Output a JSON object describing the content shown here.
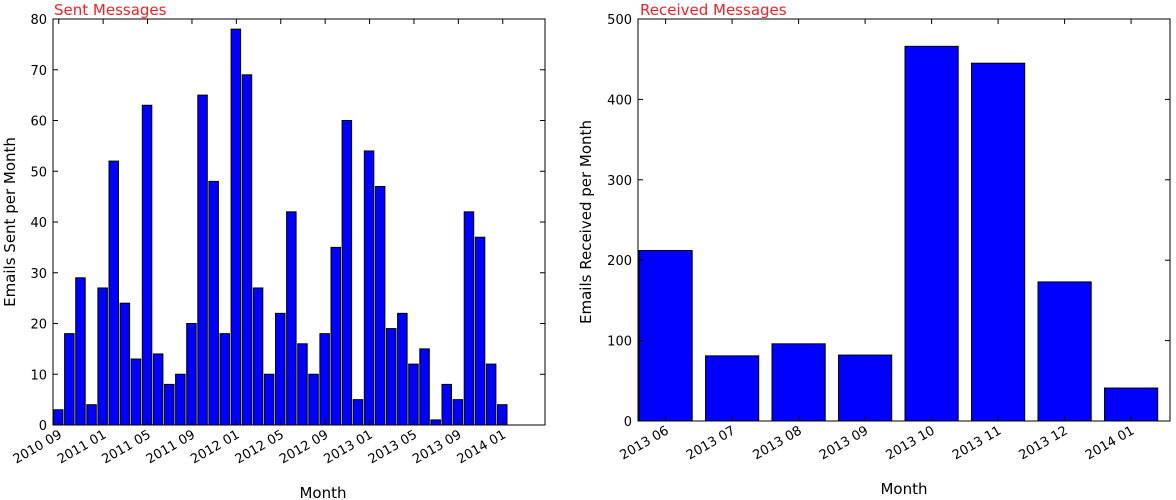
{
  "chart_data": [
    {
      "type": "bar",
      "title": "Sent Messages",
      "xlabel": "Month",
      "ylabel": "Emails Sent per Month",
      "ylim": [
        0,
        80
      ],
      "yticks": [
        0,
        10,
        20,
        30,
        40,
        50,
        60,
        70,
        80
      ],
      "xtick_labels": [
        "2010 09",
        "2011 01",
        "2011 05",
        "2011 09",
        "2012 01",
        "2012 05",
        "2012 09",
        "2013 01",
        "2013 05",
        "2013 09",
        "2014 01"
      ],
      "values": [
        3,
        18,
        29,
        4,
        27,
        52,
        24,
        13,
        63,
        14,
        8,
        10,
        20,
        65,
        48,
        18,
        78,
        69,
        27,
        10,
        22,
        42,
        16,
        10,
        18,
        35,
        60,
        5,
        54,
        47,
        19,
        22,
        12,
        15,
        1,
        8,
        5,
        42,
        37,
        12,
        4
      ],
      "bar_color": "#0000ff",
      "title_color": "#e8232b",
      "grid": false
    },
    {
      "type": "bar",
      "title": "Received Messages",
      "xlabel": "Month",
      "ylabel": "Emails Received per Month",
      "ylim": [
        0,
        500
      ],
      "yticks": [
        0,
        100,
        200,
        300,
        400,
        500
      ],
      "categories": [
        "2013 06",
        "2013 07",
        "2013 08",
        "2013 09",
        "2013 10",
        "2013 11",
        "2013 12",
        "2014 01"
      ],
      "values": [
        212,
        81,
        96,
        82,
        466,
        445,
        173,
        41
      ],
      "bar_color": "#0000ff",
      "title_color": "#e8232b",
      "grid": false
    }
  ]
}
